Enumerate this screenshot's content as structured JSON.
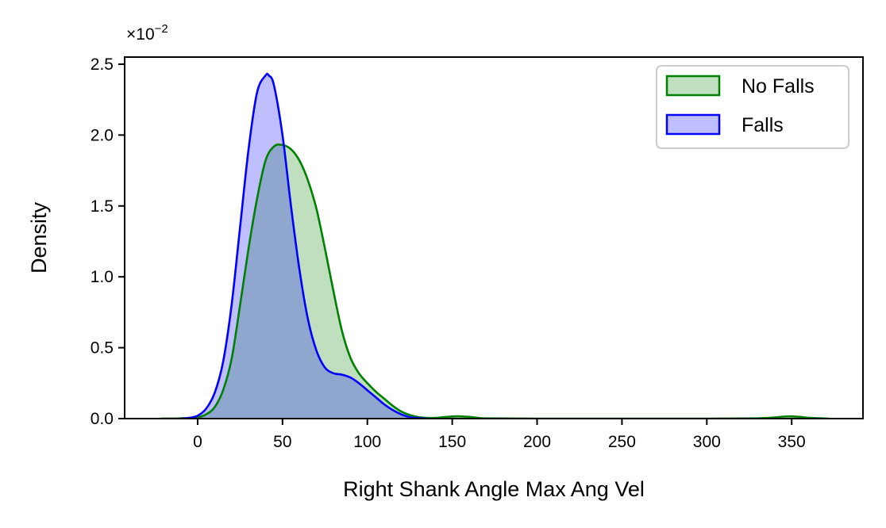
{
  "chart_data": {
    "type": "area",
    "xlabel": "Right Shank Angle Max Ang Vel",
    "ylabel": "Density",
    "y_offset_text": "×10",
    "y_offset_exponent": "−2",
    "xlim": [
      -43,
      392
    ],
    "ylim": [
      0,
      2.55
    ],
    "x_ticks": [
      0,
      50,
      100,
      150,
      200,
      250,
      300,
      350
    ],
    "x_tick_labels": [
      "0",
      "50",
      "100",
      "150",
      "200",
      "250",
      "300",
      "350"
    ],
    "y_ticks": [
      0,
      0.5,
      1.0,
      1.5,
      2.0,
      2.5
    ],
    "y_tick_labels": [
      "0.0",
      "0.5",
      "1.0",
      "1.5",
      "2.0",
      "2.5"
    ],
    "grid": false,
    "legend_position": "top-right",
    "series": [
      {
        "name": "No Falls",
        "stroke": "#008000",
        "fill": "#008000",
        "fill_opacity": 0.25,
        "x": [
          -22,
          -10,
          0,
          5,
          10,
          15,
          20,
          25,
          30,
          35,
          40,
          45,
          50,
          55,
          60,
          65,
          70,
          75,
          80,
          85,
          90,
          95,
          100,
          105,
          110,
          115,
          120,
          125,
          130,
          135,
          140,
          145,
          150,
          155,
          160,
          165,
          170,
          200,
          250,
          300,
          330,
          340,
          345,
          350,
          355,
          360,
          372
        ],
        "y": [
          0,
          0.002,
          0.01,
          0.03,
          0.08,
          0.2,
          0.42,
          0.8,
          1.2,
          1.55,
          1.82,
          1.92,
          1.93,
          1.9,
          1.82,
          1.68,
          1.48,
          1.2,
          0.9,
          0.62,
          0.43,
          0.32,
          0.25,
          0.19,
          0.14,
          0.09,
          0.05,
          0.025,
          0.01,
          0.005,
          0.005,
          0.01,
          0.015,
          0.016,
          0.012,
          0.006,
          0.002,
          0.0,
          0.0,
          0.0,
          0.002,
          0.008,
          0.014,
          0.016,
          0.012,
          0.006,
          0
        ]
      },
      {
        "name": "Falls",
        "stroke": "#0000ff",
        "fill": "#0000ff",
        "fill_opacity": 0.25,
        "x": [
          -10,
          -5,
          0,
          5,
          10,
          15,
          20,
          25,
          30,
          35,
          40,
          42,
          45,
          50,
          55,
          60,
          65,
          70,
          75,
          80,
          85,
          90,
          95,
          100,
          105,
          110,
          115,
          120,
          125,
          130,
          135
        ],
        "y": [
          0.0,
          0.005,
          0.02,
          0.07,
          0.18,
          0.4,
          0.8,
          1.35,
          1.9,
          2.3,
          2.42,
          2.42,
          2.35,
          2.0,
          1.5,
          1.05,
          0.7,
          0.48,
          0.36,
          0.32,
          0.31,
          0.29,
          0.25,
          0.2,
          0.15,
          0.1,
          0.06,
          0.03,
          0.01,
          0.004,
          0
        ]
      }
    ]
  }
}
